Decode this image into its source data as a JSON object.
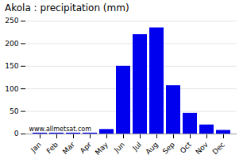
{
  "chart_data": {
    "type": "bar",
    "title": "Akola : precipitation (mm)",
    "categories": [
      "Jan",
      "Feb",
      "Mar",
      "Apr",
      "May",
      "Jun",
      "Jul",
      "Aug",
      "Sep",
      "Oct",
      "Nov",
      "Dec"
    ],
    "values": [
      2,
      2,
      2,
      2,
      10,
      150,
      220,
      235,
      107,
      46,
      20,
      8
    ],
    "color": "#0000ee",
    "ylim": [
      0,
      250
    ],
    "yticks": [
      0,
      50,
      100,
      150,
      200,
      250
    ],
    "grid": true,
    "annotations": [
      "www.allmetsat.com"
    ]
  }
}
